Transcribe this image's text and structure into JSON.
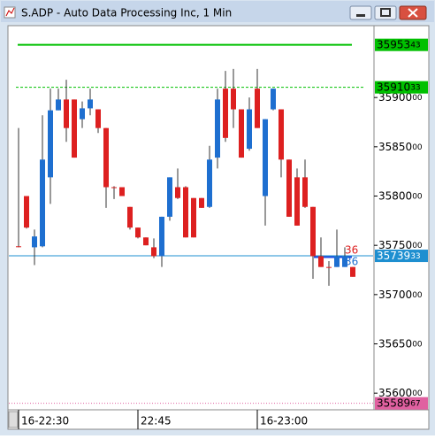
{
  "window_title": "S.ADP - Auto Data Processing Inc, 1 Min",
  "chart_data": {
    "type": "candlestick",
    "categories": [
      "16-22:30",
      null,
      null,
      null,
      null,
      null,
      null,
      null,
      null,
      null,
      null,
      null,
      null,
      null,
      null,
      "22:45",
      null,
      null,
      null,
      null,
      null,
      null,
      null,
      null,
      null,
      null,
      null,
      null,
      null,
      null,
      "16-23:00",
      null,
      null,
      null,
      null,
      null,
      null,
      null,
      null,
      null,
      null,
      null,
      null
    ],
    "open": [
      3574900,
      3580000,
      3574800,
      3574900,
      3581900,
      3588700,
      3589800,
      3589800,
      3587800,
      3588900,
      3588800,
      3586900,
      3580900,
      3580900,
      3578900,
      3576800,
      3575800,
      3574800,
      3573900,
      3577900,
      3580900,
      3580900,
      3579800,
      3579800,
      3578900,
      3583900,
      3590900,
      3590900,
      3588800,
      3584800,
      3590900,
      3580000,
      3588800,
      3588800,
      3583700,
      3581900,
      3581900,
      3578900,
      3573900,
      3572800,
      3572800,
      3572800,
      3572800
    ],
    "high": [
      3586900,
      3580000,
      3576600,
      3588200,
      3590900,
      3590900,
      3591800,
      3589800,
      3589600,
      3590900,
      3588800,
      3586900,
      3581000,
      3580900,
      3578900,
      3576800,
      3575800,
      3575700,
      3577900,
      3581900,
      3582800,
      3581000,
      3579800,
      3579800,
      3585100,
      3590900,
      3592700,
      3592900,
      3588800,
      3590000,
      3592900,
      3587800,
      3590900,
      3588800,
      3583700,
      3582800,
      3583700,
      3578900,
      3575800,
      3573400,
      3576600,
      3574800,
      3572800
    ],
    "low": [
      3574800,
      3576700,
      3573000,
      3574800,
      3579200,
      3588700,
      3585500,
      3583900,
      3586900,
      3588200,
      3586400,
      3578800,
      3579700,
      3580000,
      3576600,
      3575700,
      3575000,
      3573700,
      3572800,
      3577500,
      3579700,
      3575800,
      3575800,
      3578800,
      3578800,
      3582800,
      3585500,
      3586900,
      3583900,
      3584600,
      3586900,
      3577000,
      3588700,
      3581900,
      3577900,
      3577000,
      3578800,
      3571600,
      3572800,
      3570900,
      3572800,
      3572800,
      3571800
    ],
    "close": [
      3574900,
      3576800,
      3575900,
      3583700,
      3588700,
      3589800,
      3586900,
      3583900,
      3588900,
      3589800,
      3586900,
      3580900,
      3580900,
      3580000,
      3576800,
      3575800,
      3575000,
      3573900,
      3577900,
      3581900,
      3579800,
      3575800,
      3575800,
      3578800,
      3583700,
      3589800,
      3585900,
      3588800,
      3583900,
      3588800,
      3586900,
      3587800,
      3590900,
      3583700,
      3577900,
      3577000,
      3578900,
      3573900,
      3572800,
      3572800,
      3573900,
      3573900,
      3571800
    ],
    "up_color": "#1e6fd0",
    "down_color": "#dd2020",
    "ylim": [
      3558400,
      3597200
    ],
    "yticks": [
      3560000,
      3565000,
      3570000,
      3575000,
      3580000,
      3585000,
      3590000
    ],
    "levels": [
      {
        "value": 3595343,
        "color": "#00c000",
        "style": "solid"
      },
      {
        "value": 3591033,
        "color": "#00c000",
        "style": "dashed"
      },
      {
        "value": 3573933,
        "color": "#1e8fd0",
        "style": "thin"
      },
      {
        "value": 3558967,
        "color": "#e060a0",
        "style": "dotted"
      }
    ],
    "annotations": [
      {
        "text": "36",
        "color": "#dd2020"
      },
      {
        "text": "36",
        "color": "#1e6fd0"
      }
    ]
  }
}
